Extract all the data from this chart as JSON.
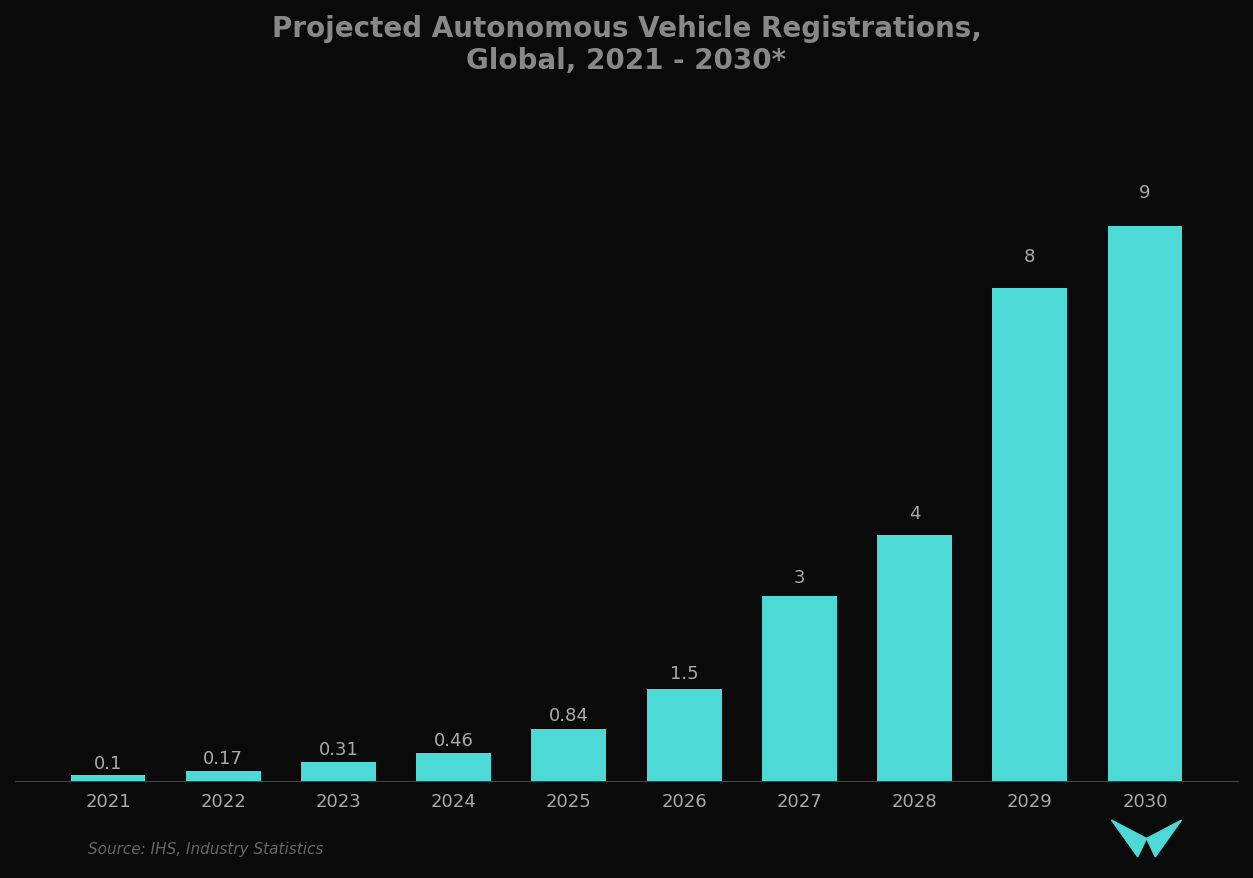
{
  "title_line1": "Projected Autonomous Vehicle Registrations,",
  "title_line2": "Global, 2021 - 2030*",
  "years": [
    "2021",
    "2022",
    "2023",
    "2024",
    "2025",
    "2026",
    "2027",
    "2028",
    "2029",
    "2030"
  ],
  "values": [
    0.1,
    0.17,
    0.31,
    0.46,
    0.84,
    1.5,
    3.0,
    4.0,
    8.0,
    9.0
  ],
  "bar_labels": [
    "0.1",
    "0.17",
    "0.31",
    "0.46",
    "0.84",
    "1.5",
    "3",
    "4",
    "8",
    "9"
  ],
  "bar_color": "#4DD9D5",
  "background_color": "#0a0a0a",
  "plot_bg_color": "#0a0a0a",
  "text_color": "#aaaaaa",
  "title_color": "#888888",
  "source_text": "Source: IHS, Industry Statistics",
  "ylim": [
    0,
    11
  ],
  "title_fontsize": 20,
  "label_fontsize": 13,
  "tick_fontsize": 13,
  "source_fontsize": 11,
  "bar_width": 0.65
}
